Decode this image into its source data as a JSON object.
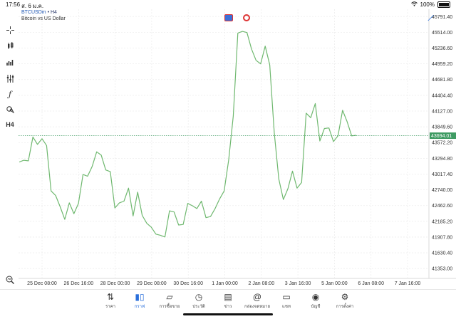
{
  "status": {
    "time": "17:56",
    "date": "ส. 6 ม.ค.",
    "battery": "100%",
    "wifi_icon": "wifi-icon"
  },
  "chart_header": {
    "symbol": "BTCUSDm",
    "timeframe": "• H4",
    "description": "Bitcoin vs US Dollar"
  },
  "toolbar_icons": [
    "crosshair-icon",
    "candles-icon",
    "bars-icon",
    "indicators-icon",
    "function-icon",
    "objects-icon",
    "timeframe-label",
    "zoom-icon",
    "app-icon"
  ],
  "toolbar_timeframe": "H4",
  "chart_data": {
    "type": "line",
    "title": "",
    "series": [
      {
        "name": "",
        "values": [
          43230,
          43260,
          43250,
          43670,
          43540,
          43640,
          43520,
          42720,
          42640,
          42440,
          42220,
          42510,
          42320,
          42500,
          43010,
          42980,
          43150,
          43410,
          43350,
          43090,
          43060,
          42420,
          42510,
          42540,
          42770,
          42280,
          42700,
          42290,
          42150,
          42080,
          41960,
          41940,
          41910,
          42370,
          42350,
          42120,
          42130,
          42500,
          42460,
          42410,
          42540,
          42250,
          42270,
          42410,
          42580,
          42720,
          43270,
          44040,
          45500,
          45530,
          45510,
          45220,
          45020,
          44960,
          45270,
          44940,
          43750,
          42930,
          42570,
          42760,
          43070,
          42770,
          42870,
          44090,
          44010,
          44260,
          43600,
          43820,
          43830,
          43590,
          43690,
          44140,
          43940,
          43690,
          43700
        ]
      }
    ],
    "x_tick_labels": [
      "25 Dec 08:00",
      "26 Dec 16:00",
      "28 Dec 00:00",
      "29 Dec 08:00",
      "30 Dec 16:00",
      "1 Jan 00:00",
      "2 Jan 08:00",
      "3 Jan 16:00",
      "5 Jan 00:00",
      "6 Jan 08:00",
      "7 Jan 16:00"
    ],
    "y_tick_labels": [
      "45791.40",
      "45514.00",
      "45236.60",
      "44959.20",
      "44681.80",
      "44404.40",
      "44127.00",
      "43849.60",
      "43572.20",
      "43294.80",
      "43017.40",
      "42740.00",
      "42462.60",
      "42185.20",
      "41907.80",
      "41630.40",
      "41353.00"
    ],
    "ylim": [
      41180,
      45920
    ],
    "current_price": "43694.01",
    "line_color": "#6fb86f",
    "price_tag_color": "#3f9b63",
    "grid": true
  },
  "nav": [
    {
      "label": "ราคา",
      "icon": "arrows-icon"
    },
    {
      "label": "กราฟ",
      "icon": "chart-icon"
    },
    {
      "label": "การซื้อขาย",
      "icon": "trend-icon"
    },
    {
      "label": "ประวัติ",
      "icon": "history-icon"
    },
    {
      "label": "ข่าว",
      "icon": "news-icon"
    },
    {
      "label": "กล่องจดหมาย",
      "icon": "at-icon"
    },
    {
      "label": "แชท",
      "icon": "chat-icon"
    },
    {
      "label": "บัญชี",
      "icon": "account-icon"
    },
    {
      "label": "การตั้งค่า",
      "icon": "gear-icon"
    }
  ]
}
